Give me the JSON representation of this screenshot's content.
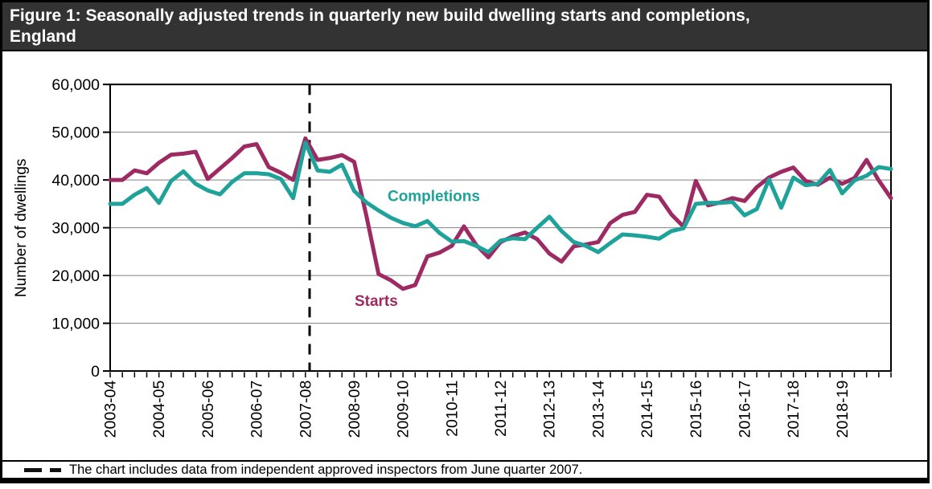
{
  "header": {
    "figure_title_line1": "Figure 1: Seasonally adjusted trends in quarterly new build dwelling starts and completions,",
    "figure_title_line2": "England"
  },
  "chart_data": {
    "type": "line",
    "ylabel": "Number of dwellings",
    "ylim": [
      0,
      60000
    ],
    "grid": "horizontal gridlines every 10,000",
    "legend_position": "inline labels beside lines",
    "y_ticks": [
      {
        "value": 0,
        "label": "0"
      },
      {
        "value": 10000,
        "label": "10,000"
      },
      {
        "value": 20000,
        "label": "20,000"
      },
      {
        "value": 30000,
        "label": "30,000"
      },
      {
        "value": 40000,
        "label": "40,000"
      },
      {
        "value": 50000,
        "label": "50,000"
      },
      {
        "value": 60000,
        "label": "60,000"
      }
    ],
    "x_tick_years": [
      "2003-04",
      "2004-05",
      "2005-06",
      "2006-07",
      "2007-08",
      "2008-09",
      "2009-10",
      "2010-11",
      "2011-12",
      "2012-13",
      "2013-14",
      "2014-15",
      "2015-16",
      "2016-17",
      "2017-18",
      "2018-19"
    ],
    "points_per_year": 4,
    "annotation": {
      "style": "dashed-vertical-line",
      "at": "June quarter 2007",
      "quarter_index": 16
    },
    "series": [
      {
        "name": "Starts",
        "color": "#9E2A63",
        "values": [
          40000,
          40000,
          42000,
          41400,
          43600,
          45300,
          45500,
          45900,
          40200,
          42400,
          44600,
          47000,
          47500,
          42700,
          41500,
          40000,
          48700,
          44200,
          44600,
          45200,
          43800,
          32500,
          20300,
          19000,
          17200,
          18000,
          24000,
          24800,
          26200,
          30300,
          26400,
          23800,
          27000,
          28200,
          29000,
          27600,
          24600,
          22900,
          26100,
          26500,
          27000,
          31000,
          32700,
          33300,
          36900,
          36500,
          32800,
          30200,
          39800,
          34700,
          35300,
          36200,
          35600,
          38500,
          40500,
          41700,
          42600,
          39800,
          39000,
          40500,
          39200,
          40400,
          44200,
          39900,
          36200
        ]
      },
      {
        "name": "Completions",
        "color": "#1EA29A",
        "values": [
          35000,
          35000,
          36900,
          38300,
          35200,
          39800,
          41800,
          39200,
          37800,
          37000,
          39600,
          41400,
          41400,
          41200,
          40200,
          36200,
          47800,
          42000,
          41700,
          43200,
          37700,
          35300,
          33600,
          32100,
          31000,
          30300,
          31400,
          28900,
          27100,
          27200,
          26200,
          24900,
          27300,
          27800,
          27600,
          30000,
          32300,
          29300,
          27000,
          26200,
          24900,
          26800,
          28600,
          28400,
          28100,
          27700,
          29300,
          29900,
          35000,
          35200,
          35200,
          35400,
          32600,
          33900,
          40100,
          34200,
          40500,
          38900,
          39200,
          42100,
          37200,
          39900,
          40900,
          42700,
          42300
        ]
      }
    ]
  },
  "footnote": {
    "text": "The chart includes data from independent approved inspectors from June quarter 2007."
  }
}
